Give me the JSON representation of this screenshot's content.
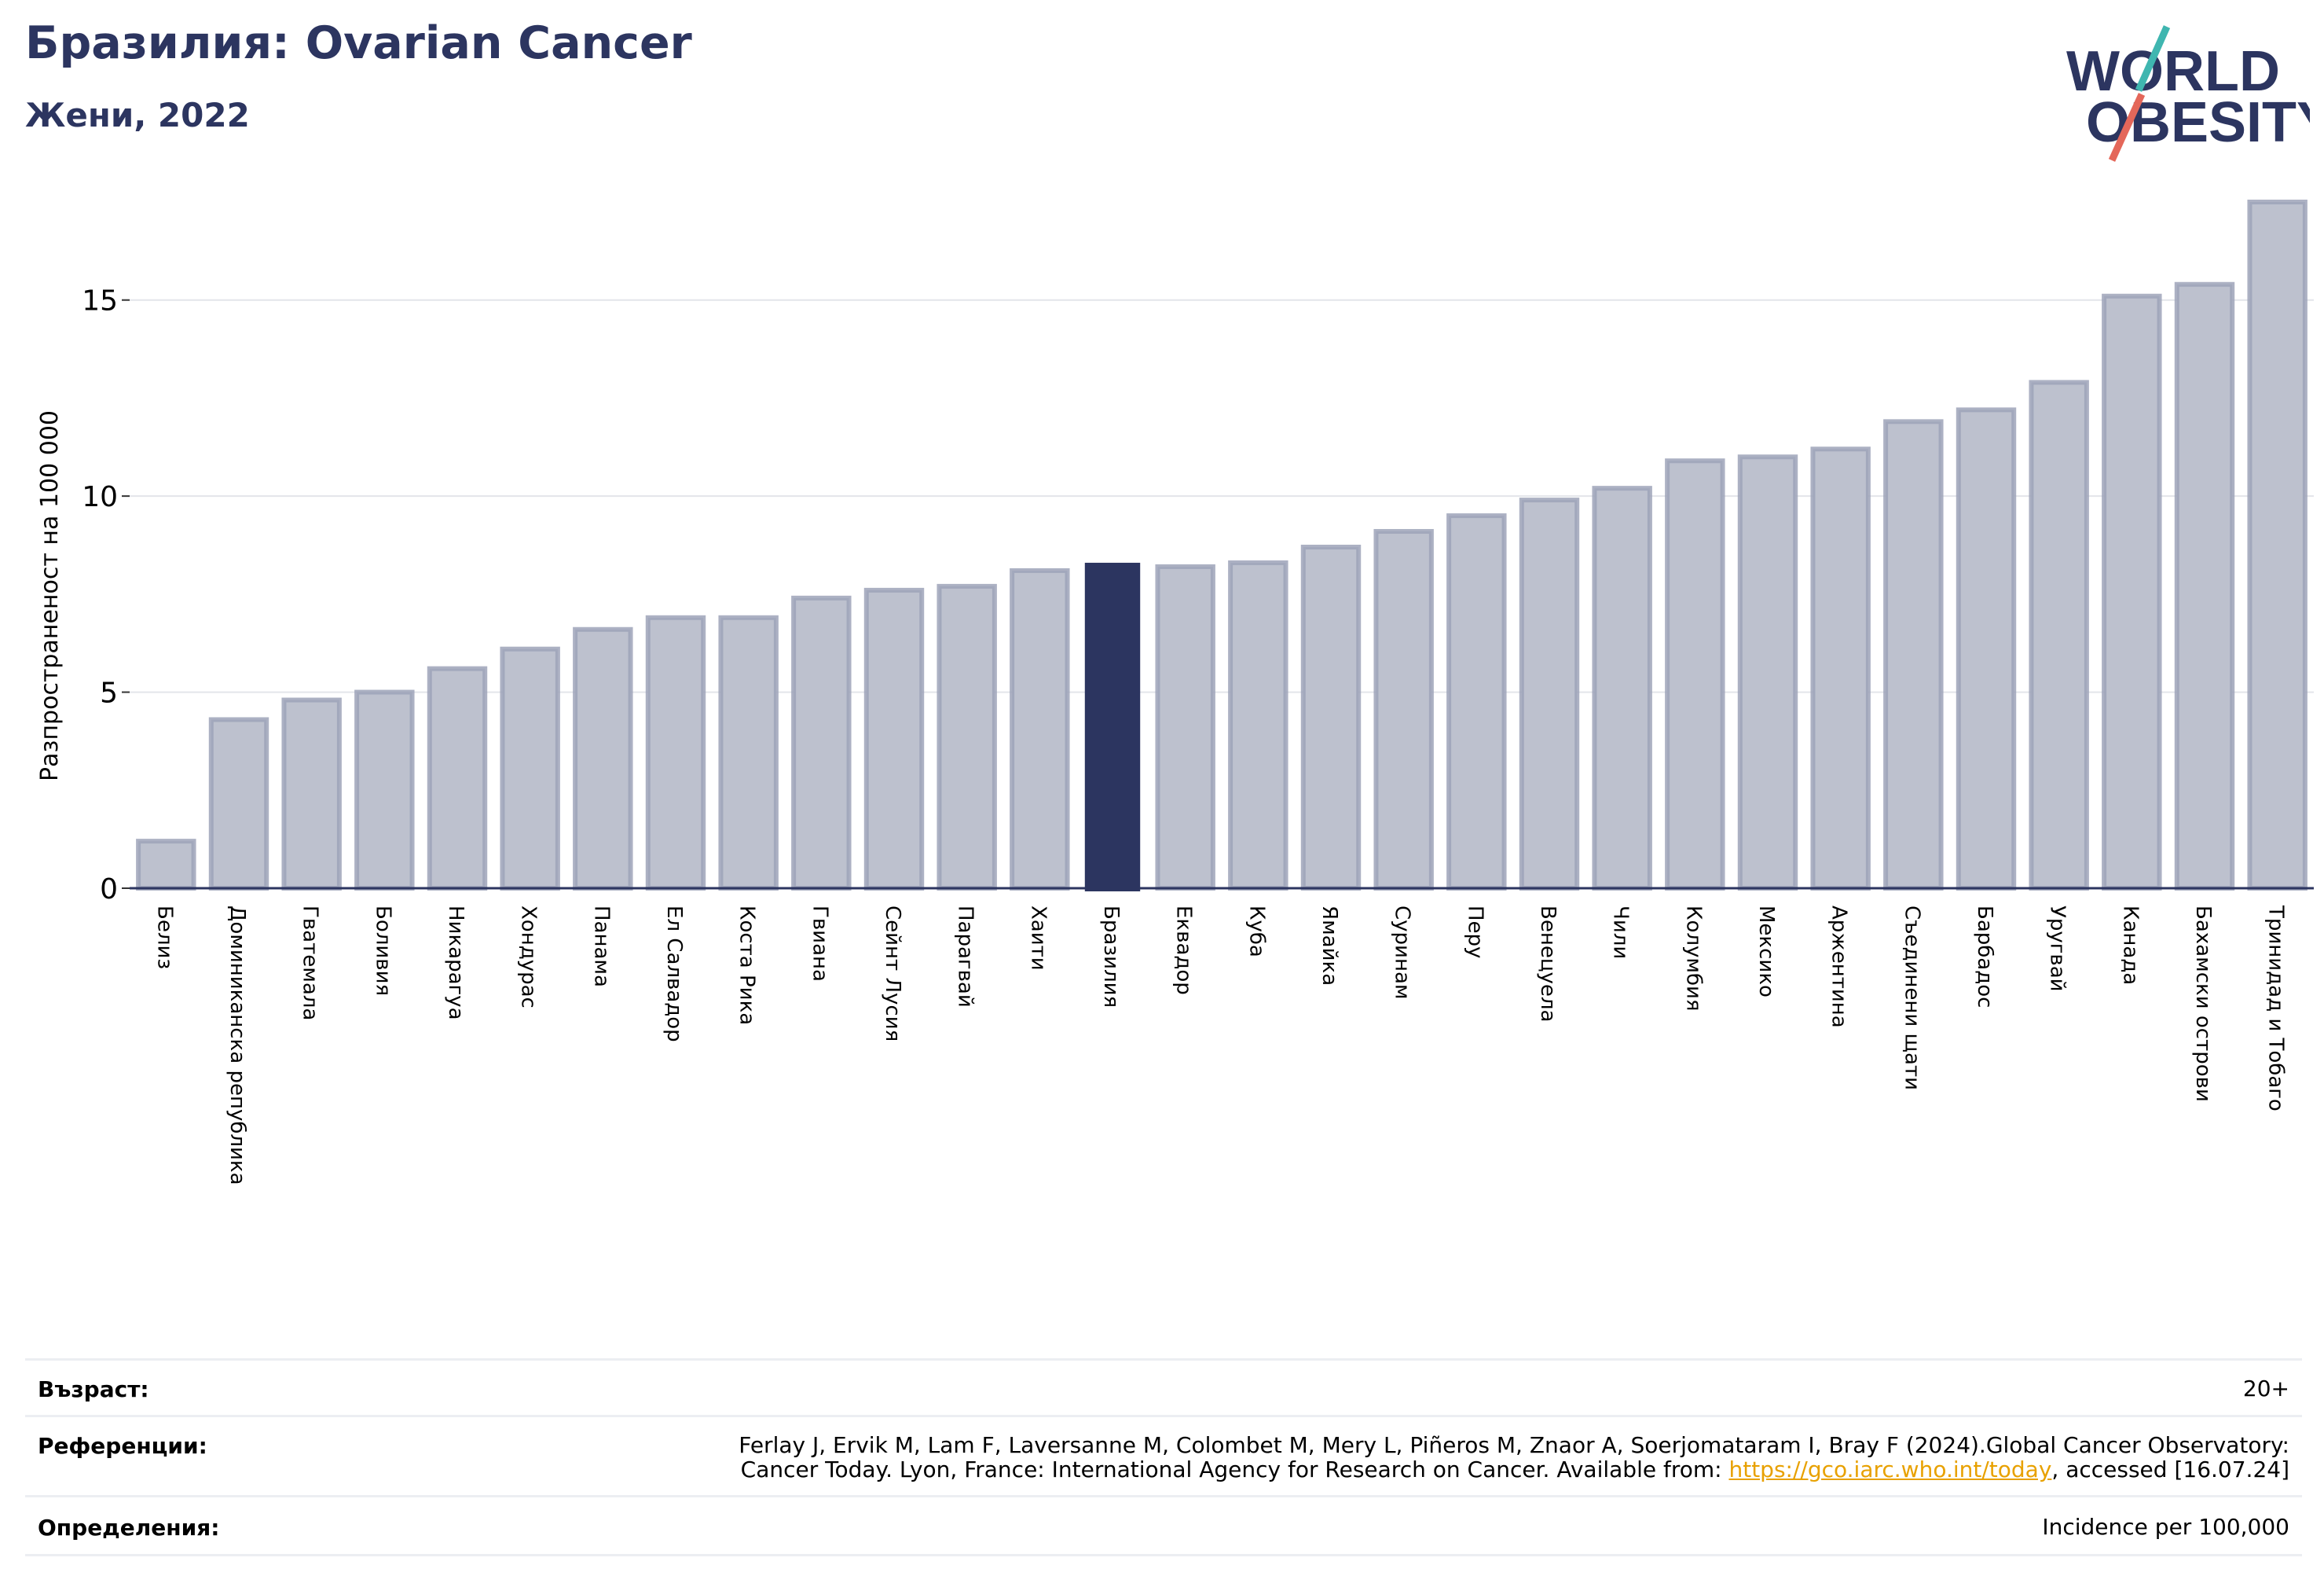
{
  "header": {
    "title": "Бразилия: Ovarian Cancer",
    "subtitle": "Жени, 2022"
  },
  "logo": {
    "line1": "WORLD",
    "line2": "OBESITY"
  },
  "colors": {
    "bar": "#bdc1ce",
    "bar_edge": "#9ea3b8",
    "highlight": "#2c3560",
    "grid": "#e3e5ea",
    "title": "#2c3560"
  },
  "chart_data": {
    "type": "bar",
    "ylabel": "Разпространеност  на 100 000",
    "ylim": [
      0,
      17.6
    ],
    "yticks": [
      0,
      5,
      10,
      15
    ],
    "grid": true,
    "highlight": "Бразилия",
    "categories": [
      "Белиз",
      "Доминиканска република",
      "Гватемала",
      "Боливия",
      "Никарагуа",
      "Хондурас",
      "Панама",
      "Ел Салвадор",
      "Коста Рика",
      "Гвиана",
      "Сейнт Лусия",
      "Парагвай",
      "Хаити",
      "Бразилия",
      "Еквадор",
      "Куба",
      "Ямайка",
      "Суринам",
      "Перу",
      "Венецуела",
      "Чили",
      "Колумбия",
      "Мексико",
      "Аржентина",
      "Съединени щати",
      "Барбадос",
      "Уругвай",
      "Канада",
      "Бахамски острови",
      "Тринидад и Тобаго"
    ],
    "values": [
      1.2,
      4.3,
      4.8,
      5.0,
      5.6,
      6.1,
      6.6,
      6.9,
      6.9,
      7.4,
      7.6,
      7.7,
      8.1,
      8.3,
      8.2,
      8.3,
      8.7,
      9.1,
      9.5,
      9.9,
      10.2,
      10.9,
      11.0,
      11.2,
      11.9,
      12.2,
      12.9,
      15.1,
      15.4,
      17.5
    ]
  },
  "footer": {
    "age_label": "Възраст:",
    "age_value": "20+",
    "ref_label": "Референции:",
    "ref_line1": "Ferlay J, Ervik M, Lam F, Laversanne M, Colombet M, Mery L, Piñeros M, Znaor A, Soerjomataram I, Bray F (2024).Global Cancer Observatory:",
    "ref_line2_pre": "Cancer Today. Lyon, France: International Agency for Research on Cancer. Available from: ",
    "ref_link": "https://gco.iarc.who.int/today",
    "ref_line2_post": ", accessed [16.07.24]",
    "def_label": "Определения:",
    "def_value": "Incidence per 100,000"
  }
}
